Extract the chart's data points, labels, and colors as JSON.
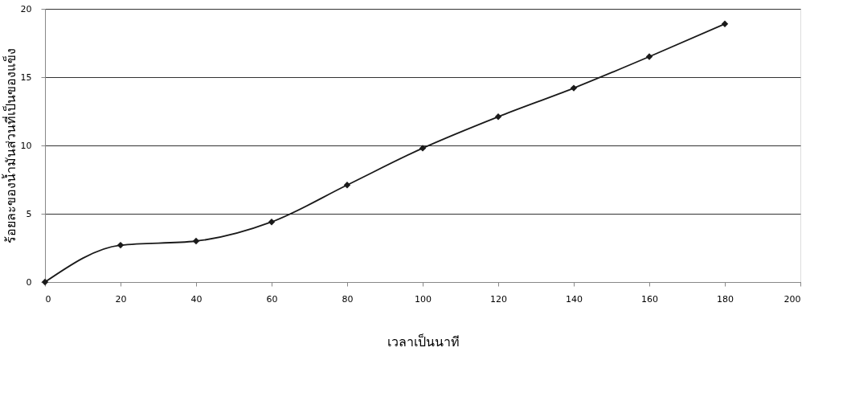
{
  "chart_data": {
    "type": "line",
    "xlabel": "เวลาเป็นนาที",
    "ylabel": "ร้อยละของน้ำมันส่วนที่เป็นของแข็ง",
    "x": [
      0,
      20,
      40,
      60,
      80,
      100,
      120,
      140,
      160,
      180
    ],
    "series": [
      {
        "color": "#1a1a1a",
        "values": [
          0,
          2.7,
          3.0,
          4.4,
          7.1,
          9.8,
          12.1,
          14.2,
          16.5,
          18.9
        ]
      }
    ],
    "xlim": [
      0,
      200
    ],
    "xticks": [
      0,
      20,
      40,
      60,
      80,
      100,
      120,
      140,
      160,
      180,
      200
    ],
    "ylim": [
      0,
      20
    ],
    "yticks": [
      0,
      5,
      10,
      15,
      20
    ],
    "grid": "y",
    "legend": false,
    "marker": "diamond",
    "line_style": "solid"
  }
}
